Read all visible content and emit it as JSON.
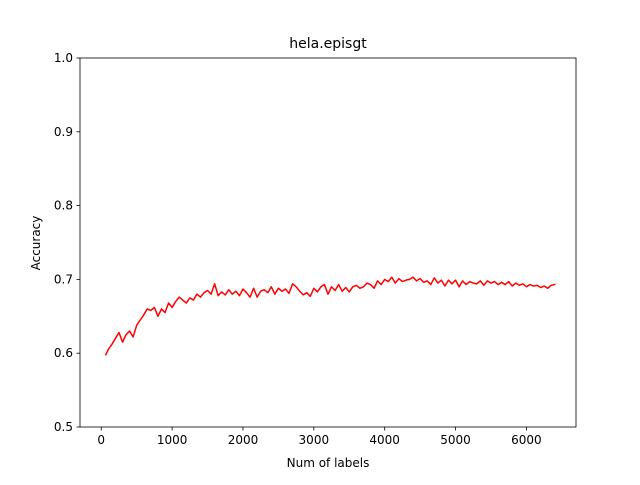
{
  "chart_data": {
    "type": "line",
    "title": "hela.episgt",
    "xlabel": "Num of labels",
    "ylabel": "Accuracy",
    "xlim": [
      -300,
      6700
    ],
    "ylim": [
      0.5,
      1.0
    ],
    "xticks": [
      0,
      1000,
      2000,
      3000,
      4000,
      5000,
      6000
    ],
    "xtick_labels": [
      "0",
      "1000",
      "2000",
      "3000",
      "4000",
      "5000",
      "6000"
    ],
    "yticks": [
      0.5,
      0.6,
      0.7,
      0.8,
      0.9,
      1.0
    ],
    "ytick_labels": [
      "0.5",
      "0.6",
      "0.7",
      "0.8",
      "0.9",
      "1.0"
    ],
    "grid": false,
    "legend": "none",
    "series": [
      {
        "color": "#ff0000",
        "x": [
          64,
          100,
          150,
          200,
          250,
          300,
          350,
          400,
          450,
          500,
          550,
          600,
          650,
          700,
          750,
          800,
          850,
          900,
          950,
          1000,
          1050,
          1100,
          1150,
          1200,
          1250,
          1300,
          1350,
          1400,
          1450,
          1500,
          1550,
          1600,
          1650,
          1700,
          1750,
          1800,
          1850,
          1900,
          1950,
          2000,
          2050,
          2100,
          2150,
          2200,
          2250,
          2300,
          2350,
          2400,
          2450,
          2500,
          2550,
          2600,
          2650,
          2700,
          2750,
          2800,
          2850,
          2900,
          2950,
          3000,
          3050,
          3100,
          3150,
          3200,
          3250,
          3300,
          3350,
          3400,
          3450,
          3500,
          3550,
          3600,
          3650,
          3700,
          3750,
          3800,
          3850,
          3900,
          3950,
          4000,
          4050,
          4100,
          4150,
          4200,
          4250,
          4300,
          4350,
          4400,
          4450,
          4500,
          4550,
          4600,
          4650,
          4700,
          4750,
          4800,
          4850,
          4900,
          4950,
          5000,
          5050,
          5100,
          5150,
          5200,
          5250,
          5300,
          5350,
          5400,
          5450,
          5500,
          5550,
          5600,
          5650,
          5700,
          5750,
          5800,
          5850,
          5900,
          5950,
          6000,
          6050,
          6100,
          6150,
          6200,
          6250,
          6300,
          6350,
          6400
        ],
        "y": [
          0.598,
          0.605,
          0.612,
          0.62,
          0.628,
          0.615,
          0.625,
          0.63,
          0.622,
          0.638,
          0.645,
          0.652,
          0.66,
          0.658,
          0.662,
          0.65,
          0.66,
          0.655,
          0.668,
          0.662,
          0.67,
          0.676,
          0.672,
          0.668,
          0.675,
          0.672,
          0.68,
          0.676,
          0.682,
          0.685,
          0.68,
          0.694,
          0.678,
          0.683,
          0.679,
          0.686,
          0.68,
          0.684,
          0.678,
          0.687,
          0.682,
          0.676,
          0.688,
          0.676,
          0.684,
          0.686,
          0.682,
          0.69,
          0.68,
          0.688,
          0.684,
          0.687,
          0.681,
          0.694,
          0.69,
          0.684,
          0.679,
          0.682,
          0.677,
          0.688,
          0.683,
          0.69,
          0.693,
          0.68,
          0.69,
          0.685,
          0.693,
          0.684,
          0.689,
          0.683,
          0.69,
          0.692,
          0.688,
          0.69,
          0.695,
          0.693,
          0.688,
          0.698,
          0.693,
          0.7,
          0.697,
          0.703,
          0.695,
          0.701,
          0.697,
          0.699,
          0.7,
          0.703,
          0.698,
          0.701,
          0.696,
          0.698,
          0.693,
          0.702,
          0.695,
          0.699,
          0.691,
          0.699,
          0.694,
          0.699,
          0.69,
          0.698,
          0.693,
          0.697,
          0.695,
          0.694,
          0.698,
          0.692,
          0.698,
          0.695,
          0.697,
          0.693,
          0.696,
          0.693,
          0.697,
          0.691,
          0.695,
          0.692,
          0.694,
          0.69,
          0.693,
          0.691,
          0.692,
          0.689,
          0.691,
          0.688,
          0.692,
          0.693
        ]
      }
    ]
  }
}
